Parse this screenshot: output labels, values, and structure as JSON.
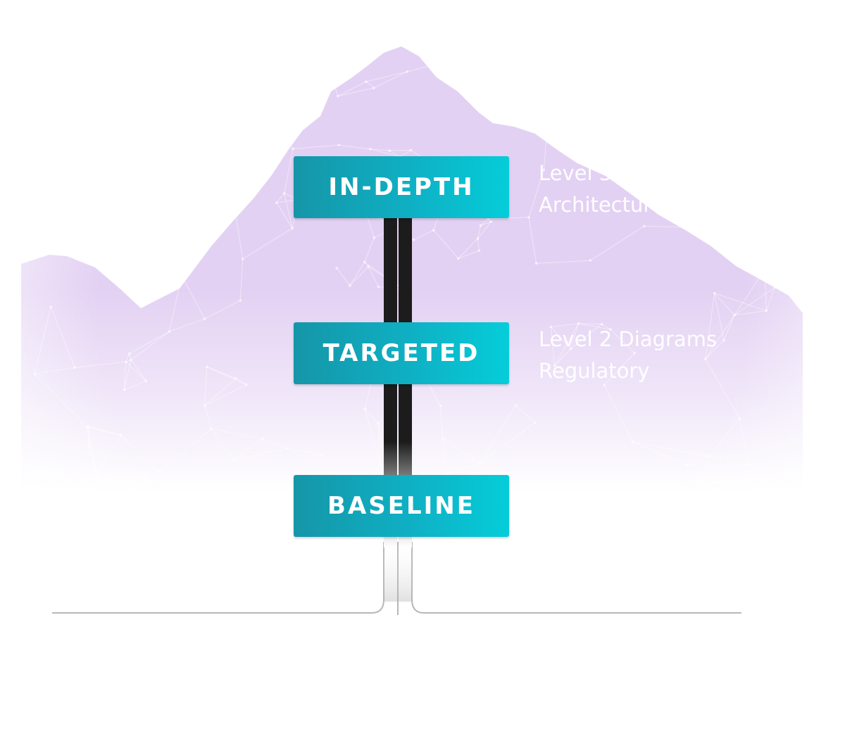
{
  "levels": [
    {
      "name": "IN-DEPTH",
      "detail_lines": [
        "Level 3",
        "Architecture"
      ]
    },
    {
      "name": "TARGETED",
      "detail_lines": [
        "Level 2 Diagrams",
        "Regulatory"
      ]
    },
    {
      "name": "BASELINE"
    }
  ],
  "colors": {
    "mountain": "#e3d1f3",
    "sign_gradient_start": "#1596a8",
    "sign_gradient_end": "#05cdd9",
    "pole": "#1c1c1c",
    "ground_line": "#b8b8b8",
    "label_text": "#ffffff"
  }
}
